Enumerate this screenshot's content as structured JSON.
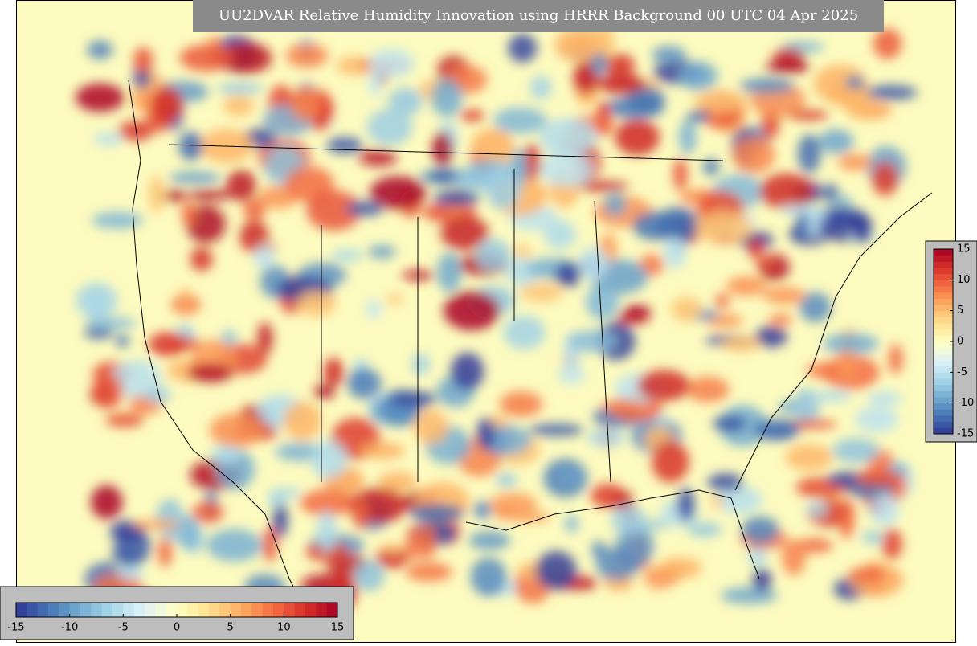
{
  "title": "UU2DVAR Relative Humidity Innovation using HRRR Background 00 UTC 04 Apr 2025",
  "colormap": [
    "#313695",
    "#4575b4",
    "#74add1",
    "#abd9e9",
    "#e0f3f8",
    "#ffffbf",
    "#fee090",
    "#fdae61",
    "#f46d43",
    "#d73027",
    "#a50026"
  ],
  "vertical_colorbar": {
    "lim": [
      -15,
      15
    ],
    "ticks": [
      -15,
      -10,
      -5,
      0,
      5,
      10,
      15
    ]
  },
  "horizontal_colorbar": {
    "lim": [
      -15,
      15
    ],
    "ticks": [
      -15,
      -10,
      -5,
      0,
      5,
      10,
      15
    ]
  }
}
